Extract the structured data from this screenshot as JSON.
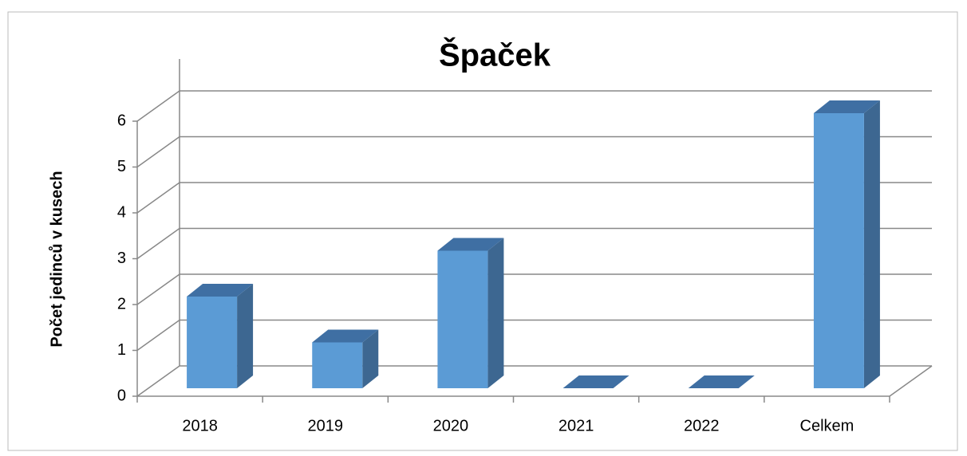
{
  "chart_data": {
    "type": "bar3d",
    "title": "Špaček",
    "y_label": "Počet jedinců v kusech",
    "categories": [
      "2018",
      "2019",
      "2020",
      "2021",
      "2022",
      "Celkem"
    ],
    "values": [
      2,
      1,
      3,
      0,
      0,
      6
    ],
    "color": "#5b9bd5",
    "ylim": [
      0,
      6
    ],
    "yticks": [
      0,
      1,
      2,
      3,
      4,
      5,
      6
    ],
    "grid": true
  }
}
